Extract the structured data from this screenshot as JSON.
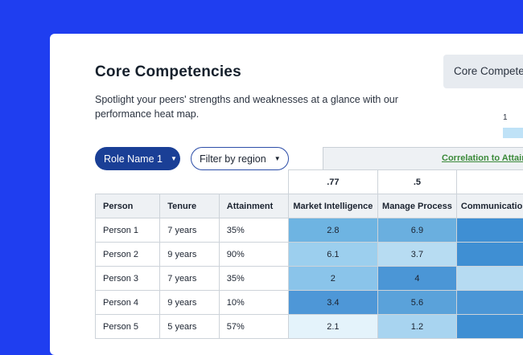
{
  "section": {
    "title": "Core Competencies",
    "description": "Spotlight your peers' strengths and weaknesses at a glance with our performance heat map."
  },
  "side_tab": {
    "label": "Core Competencies"
  },
  "legend": {
    "min_label": "1",
    "min_color": "#bfe2f7"
  },
  "filters": {
    "role": {
      "label": "Role Name 1"
    },
    "region": {
      "label": "Filter by region"
    }
  },
  "correlation": {
    "header": "Correlation to Attainment",
    "values": [
      ".77",
      ".5",
      ""
    ]
  },
  "table": {
    "columns": [
      "Person",
      "Tenure",
      "Attainment",
      "Market Intelligence",
      "Manage Process",
      "Communication"
    ],
    "rows": [
      {
        "person": "Person 1",
        "tenure": "7 years",
        "attainment": "35%",
        "scores": [
          "2.8",
          "6.9",
          ""
        ],
        "colors": [
          "#6eb4e2",
          "#6aafdf",
          "#3f8fd3"
        ]
      },
      {
        "person": "Person 2",
        "tenure": "9 years",
        "attainment": "90%",
        "scores": [
          "6.1",
          "3.7",
          ""
        ],
        "colors": [
          "#9ccfee",
          "#b7dcf2",
          "#3f8fd3"
        ]
      },
      {
        "person": "Person 3",
        "tenure": "7 years",
        "attainment": "35%",
        "scores": [
          "2",
          "4",
          ""
        ],
        "colors": [
          "#8ac4ea",
          "#4b96d6",
          "#b6dbf2"
        ]
      },
      {
        "person": "Person 4",
        "tenure": "9 years",
        "attainment": "10%",
        "scores": [
          "3.4",
          "5.6",
          ""
        ],
        "colors": [
          "#4e97d7",
          "#5aa2da",
          "#4b96d6"
        ]
      },
      {
        "person": "Person 5",
        "tenure": "5 years",
        "attainment": "57%",
        "scores": [
          "2.1",
          "1.2",
          ""
        ],
        "colors": [
          "#e4f3fb",
          "#a8d4f0",
          "#3f8fd3"
        ]
      }
    ]
  }
}
